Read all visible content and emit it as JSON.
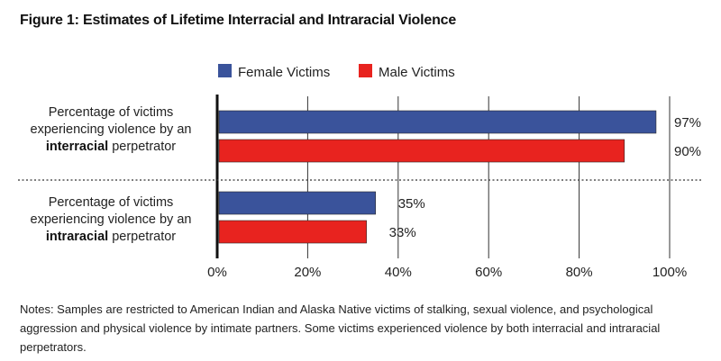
{
  "figure_title": "Figure 1: Estimates of Lifetime Interracial and Intraracial Violence",
  "notes": "Notes: Samples are restricted to American Indian and Alaska Native victims of stalking, sexual violence, and psychological aggression and physical violence by intimate partners. Some victims experienced violence by both interracial and intraracial perpetrators.",
  "colors": {
    "female": "#3a539b",
    "male": "#e8231f",
    "grid": "#333333"
  },
  "chart_data": {
    "type": "bar",
    "orientation": "horizontal",
    "categories": [
      {
        "line1": "Percentage of victims",
        "line2": "experiencing violence by an",
        "bold": "interracial",
        "rest": " perpetrator"
      },
      {
        "line1": "Percentage of victims",
        "line2": "experiencing violence by an",
        "bold": "intraracial",
        "rest": " perpetrator"
      }
    ],
    "series": [
      {
        "name": "Female Victims",
        "values": [
          97,
          35
        ],
        "labels": [
          "97%",
          "35%"
        ]
      },
      {
        "name": "Male Victims",
        "values": [
          90,
          33
        ],
        "labels": [
          "90%",
          "33%"
        ]
      }
    ],
    "xlim": [
      0,
      100
    ],
    "xticks": [
      0,
      20,
      40,
      60,
      80,
      100
    ],
    "xtick_labels": [
      "0%",
      "20%",
      "40%",
      "60%",
      "80%",
      "100%"
    ],
    "grid": true,
    "legend": "top"
  }
}
